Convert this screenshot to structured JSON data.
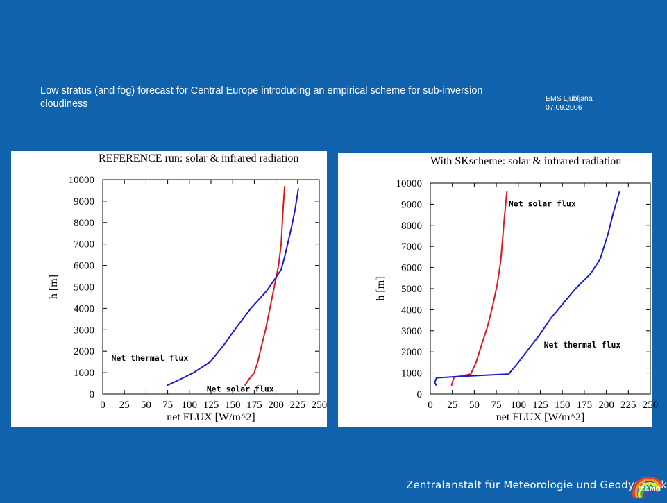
{
  "slide": {
    "title": "Low stratus (and fog) forecast for Central Europe introducing an empirical scheme for sub-inversion cloudiness",
    "event": "EMS Ljubljana",
    "date": "07.09.2006",
    "footer": "Zentralanstalt für Meteorologie und Geodynamik",
    "logo_text": "ZAMG"
  },
  "colors": {
    "background": "#1162ad",
    "solar": "#dd1a1a",
    "thermal": "#1a1ad2"
  },
  "chart_data": [
    {
      "type": "line",
      "title": "REFERENCE run: solar & infrared radiation",
      "xlabel": "net FLUX [W/m^2]",
      "ylabel": "h [m]",
      "xlim": [
        0,
        250
      ],
      "ylim": [
        0,
        10000
      ],
      "xticks": [
        0,
        25,
        50,
        75,
        100,
        125,
        150,
        175,
        200,
        225,
        250
      ],
      "yticks": [
        0,
        1000,
        2000,
        3000,
        4000,
        5000,
        6000,
        7000,
        8000,
        9000,
        10000
      ],
      "grid": false,
      "annotations": [
        {
          "text": "Net thermal flux",
          "x": 10,
          "y": 1550
        },
        {
          "text": "Net solar flux",
          "x": 120,
          "y": 120
        }
      ],
      "series": [
        {
          "name": "Net solar flux",
          "color": "#dd1a1a",
          "x": [
            164,
            169,
            175,
            179,
            183,
            188,
            193,
            198,
            203,
            206,
            208,
            210
          ],
          "y": [
            400,
            700,
            1000,
            1500,
            2200,
            3000,
            4000,
            5000,
            6000,
            7000,
            8500,
            9700
          ]
        },
        {
          "name": "Net thermal flux",
          "color": "#1a1ad2",
          "x": [
            74,
            90,
            105,
            124,
            140,
            156,
            171,
            189,
            206,
            210,
            218,
            222,
            226
          ],
          "y": [
            400,
            700,
            1000,
            1500,
            2300,
            3200,
            4000,
            4800,
            5800,
            6400,
            7800,
            8600,
            9600
          ]
        }
      ]
    },
    {
      "type": "line",
      "title": "With SKscheme: solar & infrared radiation",
      "xlabel": "net FLUX [W/m^2]",
      "ylabel": "h [m]",
      "xlim": [
        0,
        250
      ],
      "ylim": [
        0,
        10000
      ],
      "xticks": [
        0,
        25,
        50,
        75,
        100,
        125,
        150,
        175,
        200,
        225,
        250
      ],
      "yticks": [
        0,
        1000,
        2000,
        3000,
        4000,
        5000,
        6000,
        7000,
        8000,
        9000,
        10000
      ],
      "grid": false,
      "annotations": [
        {
          "text": "Net solar flux",
          "x": 89,
          "y": 8900
        },
        {
          "text": "Net thermal flux",
          "x": 129,
          "y": 2200
        }
      ],
      "series": [
        {
          "name": "Net solar flux",
          "color": "#dd1a1a",
          "x": [
            24,
            27,
            34,
            46,
            52,
            58,
            65,
            71,
            76,
            80,
            82,
            84,
            87
          ],
          "y": [
            400,
            800,
            850,
            950,
            1500,
            2300,
            3200,
            4200,
            5200,
            6300,
            7300,
            8300,
            9600
          ]
        },
        {
          "name": "Net thermal flux",
          "color": "#1a1ad2",
          "x": [
            7,
            5,
            7,
            30,
            89,
            100,
            111,
            124,
            137,
            151,
            165,
            182,
            193,
            202,
            208,
            215
          ],
          "y": [
            400,
            550,
            770,
            830,
            950,
            1500,
            2100,
            2800,
            3600,
            4300,
            5000,
            5700,
            6400,
            7600,
            8600,
            9600
          ]
        }
      ]
    }
  ]
}
